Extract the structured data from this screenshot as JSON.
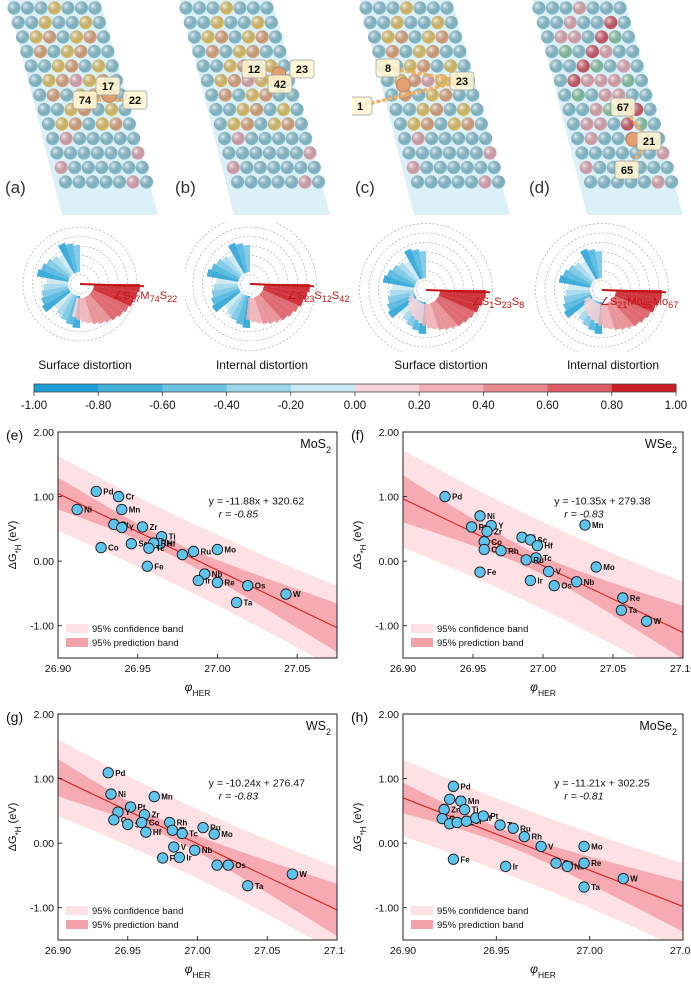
{
  "colors": {
    "substrate": "#8fd3e6",
    "top_atom": "#f5d36a",
    "mid_atom": "#f0b183",
    "pink_atom": "#f3b4c2",
    "green_atom": "#8ed7b4",
    "label_box": "#fff6d0",
    "highlight_bond": "#f0b060",
    "fit_line": "#d72020",
    "conf_band": "#fde1e4",
    "pred_band": "#f3a1a8",
    "marker": "#5ec4ee",
    "negative_accent": "#24a7d9",
    "positive_accent": "#d42727"
  },
  "lattices": [
    {
      "letter": "(a)",
      "labels": [
        "17",
        "74",
        "22"
      ]
    },
    {
      "letter": "(b)",
      "labels": [
        "12",
        "42",
        "23"
      ]
    },
    {
      "letter": "(c)",
      "labels": [
        "8",
        "23",
        "1"
      ]
    },
    {
      "letter": "(d)",
      "labels": [
        "67",
        "21",
        "65"
      ]
    }
  ],
  "distortions": [
    {
      "caption": "Surface distortion",
      "angle": [
        "∠S",
        "17",
        "M",
        "74",
        "S",
        "22"
      ]
    },
    {
      "caption": "Internal distortion",
      "angle": [
        "∠S",
        "23",
        "S",
        "12",
        "S",
        "42"
      ]
    },
    {
      "caption": "Surface distortion",
      "angle": [
        "∠S",
        "1",
        "S",
        "23",
        "S",
        "8"
      ]
    },
    {
      "caption": "Internal distortion",
      "angle": [
        "∠S",
        "21",
        "Mo",
        "65",
        "Mo",
        "67"
      ]
    }
  ],
  "colorbar": {
    "ticks": [
      "-1.00",
      "-0.80",
      "-0.60",
      "-0.40",
      "-0.20",
      "0.00",
      "0.20",
      "0.40",
      "0.60",
      "0.80",
      "1.00"
    ],
    "colors": [
      "#1e9fd4",
      "#43b1dc",
      "#6ec3e3",
      "#9bd6ea",
      "#c8e8f1",
      "#f6d3d7",
      "#f0b0b6",
      "#e68990",
      "#dc5c64",
      "#cb1f27"
    ]
  },
  "chart_data": [
    {
      "type": "scatter",
      "panel": "(e)",
      "compound": "MoS",
      "compound_sub": "2",
      "xlabel": "φ",
      "xlabel_sub": "HER",
      "ylabel": "ΔG",
      "ylabel_sub": "*H",
      "ylabel_unit": "(eV)",
      "xlim": [
        26.9,
        27.075
      ],
      "ylim": [
        -1.5,
        2.0
      ],
      "xticks": [
        "26.90",
        "26.95",
        "27.00",
        "27.05"
      ],
      "yticks": [
        "2.00",
        "1.00",
        "0.00",
        "-1.00"
      ],
      "equation": "y = -11.88x + 320.62",
      "r": "r = -0.85",
      "legend": [
        "95% confidence band",
        "95% prediction band"
      ],
      "fit": {
        "slope": -11.88,
        "intercept": 320.62
      },
      "points": [
        {
          "label": "Pd",
          "x": 26.924,
          "y": 1.08
        },
        {
          "label": "Cr",
          "x": 26.938,
          "y": 1.0
        },
        {
          "label": "Mn",
          "x": 26.94,
          "y": 0.8
        },
        {
          "label": "Ni",
          "x": 26.912,
          "y": 0.8
        },
        {
          "label": "Pt",
          "x": 26.935,
          "y": 0.57
        },
        {
          "label": "Y",
          "x": 26.94,
          "y": 0.52
        },
        {
          "label": "Zr",
          "x": 26.953,
          "y": 0.53
        },
        {
          "label": "Ti",
          "x": 26.965,
          "y": 0.38
        },
        {
          "label": "Hf",
          "x": 26.964,
          "y": 0.27
        },
        {
          "label": "Rh",
          "x": 26.96,
          "y": 0.28
        },
        {
          "label": "Co",
          "x": 26.927,
          "y": 0.21
        },
        {
          "label": "Sc",
          "x": 26.946,
          "y": 0.27
        },
        {
          "label": "Tc",
          "x": 26.957,
          "y": 0.2
        },
        {
          "label": "V",
          "x": 26.978,
          "y": 0.1
        },
        {
          "label": "Ru",
          "x": 26.985,
          "y": 0.15
        },
        {
          "label": "Mo",
          "x": 27.0,
          "y": 0.18
        },
        {
          "label": "Fe",
          "x": 26.956,
          "y": -0.08
        },
        {
          "label": "Nb",
          "x": 26.992,
          "y": -0.2
        },
        {
          "label": "Ir",
          "x": 26.988,
          "y": -0.3
        },
        {
          "label": "Re",
          "x": 27.0,
          "y": -0.33
        },
        {
          "label": "Os",
          "x": 27.019,
          "y": -0.38
        },
        {
          "label": "W",
          "x": 27.043,
          "y": -0.51
        },
        {
          "label": "Ta",
          "x": 27.012,
          "y": -0.64
        }
      ]
    },
    {
      "type": "scatter",
      "panel": "(f)",
      "compound": "WSe",
      "compound_sub": "2",
      "xlabel": "φ",
      "xlabel_sub": "HER",
      "ylabel": "ΔG",
      "ylabel_sub": "*H",
      "ylabel_unit": "(eV)",
      "xlim": [
        26.9,
        27.1
      ],
      "ylim": [
        -1.5,
        2.0
      ],
      "xticks": [
        "26.90",
        "26.95",
        "27.00",
        "27.05",
        "27.10"
      ],
      "yticks": [
        "2.00",
        "1.00",
        "0.00",
        "-1.00"
      ],
      "equation": "y = -10.35x + 279.38",
      "r": "r = -0.83",
      "legend": [
        "95% confidence band",
        "95% prediction band"
      ],
      "fit": {
        "slope": -10.35,
        "intercept": 279.38
      },
      "points": [
        {
          "label": "Pd",
          "x": 26.93,
          "y": 1.0
        },
        {
          "label": "Ni",
          "x": 26.955,
          "y": 0.7
        },
        {
          "label": "Y",
          "x": 26.963,
          "y": 0.55
        },
        {
          "label": "Pt",
          "x": 26.949,
          "y": 0.53
        },
        {
          "label": "Zr",
          "x": 26.96,
          "y": 0.46
        },
        {
          "label": "Co",
          "x": 26.958,
          "y": 0.3
        },
        {
          "label": "Ti",
          "x": 26.985,
          "y": 0.37
        },
        {
          "label": "Sc",
          "x": 26.991,
          "y": 0.33
        },
        {
          "label": "Hf",
          "x": 26.996,
          "y": 0.24
        },
        {
          "label": "Mn",
          "x": 27.03,
          "y": 0.56
        },
        {
          "label": "Cr",
          "x": 26.958,
          "y": 0.18
        },
        {
          "label": "Rh",
          "x": 26.97,
          "y": 0.16
        },
        {
          "label": "Tc",
          "x": 26.995,
          "y": 0.05
        },
        {
          "label": "Ru",
          "x": 26.988,
          "y": 0.02
        },
        {
          "label": "V",
          "x": 27.004,
          "y": -0.16
        },
        {
          "label": "Mo",
          "x": 27.038,
          "y": -0.09
        },
        {
          "label": "Fe",
          "x": 26.955,
          "y": -0.17
        },
        {
          "label": "Ir",
          "x": 26.991,
          "y": -0.3
        },
        {
          "label": "Nb",
          "x": 27.024,
          "y": -0.32
        },
        {
          "label": "Os",
          "x": 27.008,
          "y": -0.38
        },
        {
          "label": "Re",
          "x": 27.057,
          "y": -0.57
        },
        {
          "label": "Ta",
          "x": 27.056,
          "y": -0.76
        },
        {
          "label": "W",
          "x": 27.074,
          "y": -0.93
        }
      ]
    },
    {
      "type": "scatter",
      "panel": "(g)",
      "compound": "WS",
      "compound_sub": "2",
      "xlabel": "φ",
      "xlabel_sub": "HER",
      "ylabel": "ΔG",
      "ylabel_sub": "*H",
      "ylabel_unit": "(eV)",
      "xlim": [
        26.9,
        27.1
      ],
      "ylim": [
        -1.5,
        2.0
      ],
      "xticks": [
        "26.90",
        "26.95",
        "27.00",
        "27.05",
        "27.10"
      ],
      "yticks": [
        "2.00",
        "1.00",
        "0.00",
        "-1.00"
      ],
      "equation": "y = -10.24x + 276.47",
      "r": "r = -0.83",
      "legend": [
        "95% confidence band",
        "95% prediction band"
      ],
      "fit": {
        "slope": -10.24,
        "intercept": 276.47
      },
      "points": [
        {
          "label": "Pd",
          "x": 26.936,
          "y": 1.09
        },
        {
          "label": "Ni",
          "x": 26.938,
          "y": 0.76
        },
        {
          "label": "Mn",
          "x": 26.969,
          "y": 0.72
        },
        {
          "label": "Pt",
          "x": 26.952,
          "y": 0.56
        },
        {
          "label": "Y",
          "x": 26.943,
          "y": 0.48
        },
        {
          "label": "Zr",
          "x": 26.962,
          "y": 0.44
        },
        {
          "label": "Cr",
          "x": 26.94,
          "y": 0.36
        },
        {
          "label": "Sc",
          "x": 26.95,
          "y": 0.29
        },
        {
          "label": "Co",
          "x": 26.96,
          "y": 0.32
        },
        {
          "label": "Hf",
          "x": 26.963,
          "y": 0.17
        },
        {
          "label": "Rh",
          "x": 26.98,
          "y": 0.32
        },
        {
          "label": "Ti",
          "x": 26.982,
          "y": 0.2
        },
        {
          "label": "Tc",
          "x": 26.989,
          "y": 0.15
        },
        {
          "label": "Ru",
          "x": 27.004,
          "y": 0.24
        },
        {
          "label": "Mo",
          "x": 27.012,
          "y": 0.14
        },
        {
          "label": "V",
          "x": 26.983,
          "y": -0.06
        },
        {
          "label": "Nb",
          "x": 26.998,
          "y": -0.11
        },
        {
          "label": "Fe",
          "x": 26.975,
          "y": -0.23
        },
        {
          "label": "Ir",
          "x": 26.987,
          "y": -0.22
        },
        {
          "label": "Re",
          "x": 27.014,
          "y": -0.34
        },
        {
          "label": "Os",
          "x": 27.022,
          "y": -0.34
        },
        {
          "label": "W",
          "x": 27.068,
          "y": -0.48
        },
        {
          "label": "Ta",
          "x": 27.036,
          "y": -0.66
        }
      ]
    },
    {
      "type": "scatter",
      "panel": "(h)",
      "compound": "MoSe",
      "compound_sub": "2",
      "xlabel": "φ",
      "xlabel_sub": "HER",
      "ylabel": "ΔG",
      "ylabel_sub": "*H",
      "ylabel_unit": "(eV)",
      "xlim": [
        26.9,
        27.05
      ],
      "ylim": [
        -1.5,
        2.0
      ],
      "xticks": [
        "26.90",
        "26.95",
        "27.00",
        "27.05"
      ],
      "yticks": [
        "2.00",
        "1.00",
        "0.00",
        "-1.00"
      ],
      "equation": "y = -11.21x + 302.25",
      "r": "r = -0.81",
      "legend": [
        "95% confidence band",
        "95% prediction band"
      ],
      "fit": {
        "slope": -11.21,
        "intercept": 302.25
      },
      "points": [
        {
          "label": "Pd",
          "x": 26.927,
          "y": 0.88
        },
        {
          "label": "Ni",
          "x": 26.925,
          "y": 0.68
        },
        {
          "label": "Mn",
          "x": 26.931,
          "y": 0.65
        },
        {
          "label": "Zr",
          "x": 26.922,
          "y": 0.52
        },
        {
          "label": "Ti",
          "x": 26.933,
          "y": 0.52
        },
        {
          "label": "Co",
          "x": 26.921,
          "y": 0.38
        },
        {
          "label": "Y",
          "x": 26.925,
          "y": 0.3
        },
        {
          "label": "Sc",
          "x": 26.929,
          "y": 0.32
        },
        {
          "label": "Cr",
          "x": 26.934,
          "y": 0.34
        },
        {
          "label": "Hf",
          "x": 26.939,
          "y": 0.39
        },
        {
          "label": "Pt",
          "x": 26.943,
          "y": 0.42
        },
        {
          "label": "Tc",
          "x": 26.952,
          "y": 0.28
        },
        {
          "label": "Ru",
          "x": 26.959,
          "y": 0.23
        },
        {
          "label": "Rh",
          "x": 26.965,
          "y": 0.1
        },
        {
          "label": "V",
          "x": 26.974,
          "y": -0.05
        },
        {
          "label": "Mo",
          "x": 26.997,
          "y": -0.05
        },
        {
          "label": "Fe",
          "x": 26.927,
          "y": -0.25
        },
        {
          "label": "Ir",
          "x": 26.955,
          "y": -0.36
        },
        {
          "label": "Os",
          "x": 26.982,
          "y": -0.31
        },
        {
          "label": "Nb",
          "x": 26.988,
          "y": -0.36
        },
        {
          "label": "Re",
          "x": 26.997,
          "y": -0.31
        },
        {
          "label": "W",
          "x": 27.018,
          "y": -0.55
        },
        {
          "label": "Ta",
          "x": 26.997,
          "y": -0.68
        }
      ]
    }
  ]
}
